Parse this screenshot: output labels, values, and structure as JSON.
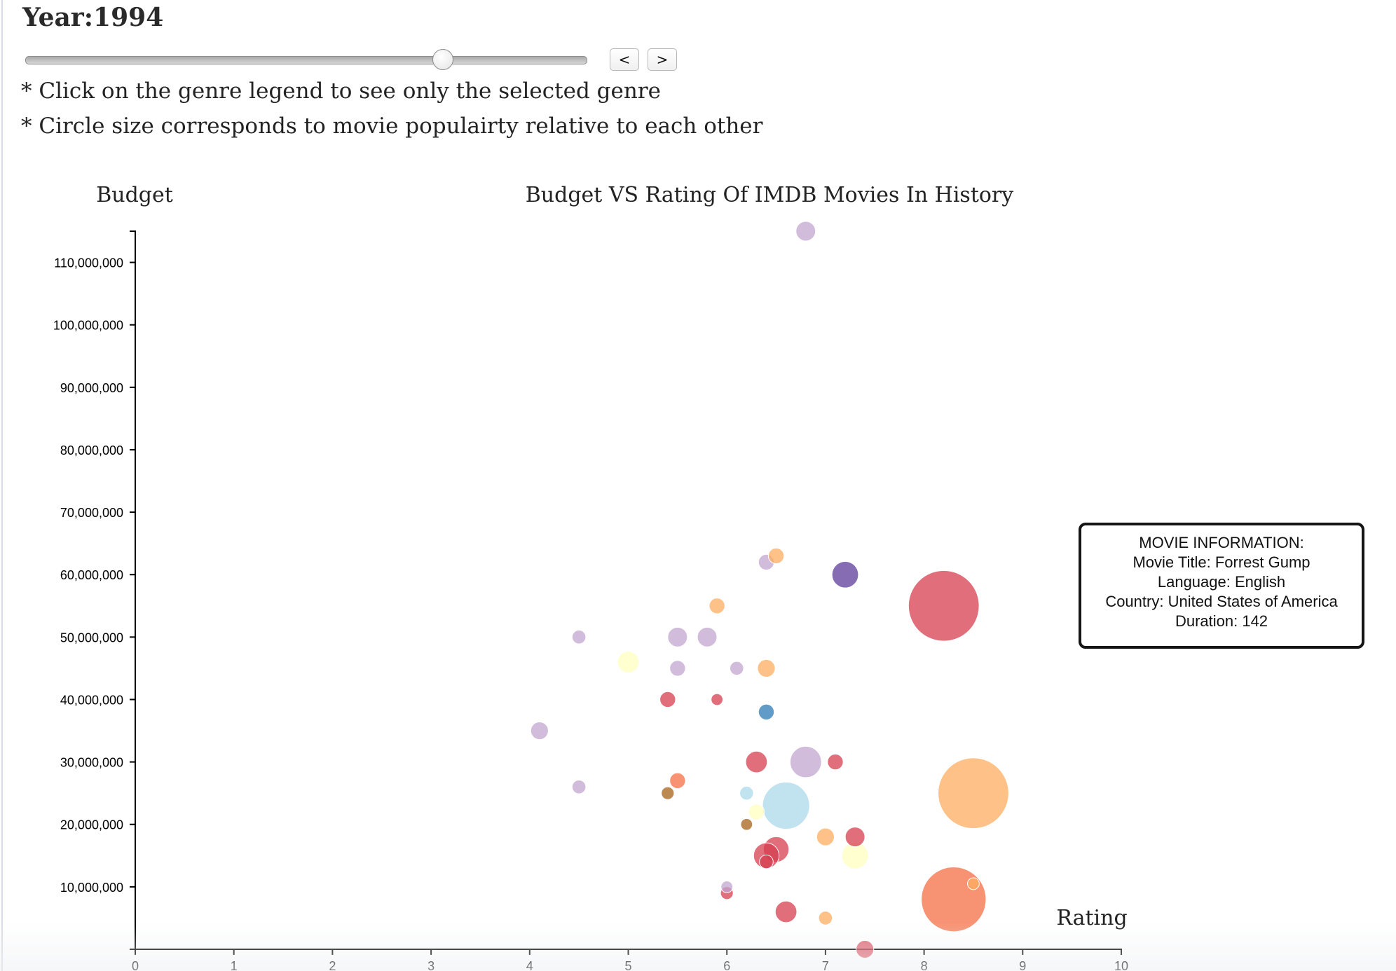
{
  "header": {
    "year_label": "Year:1994",
    "slider": {
      "value": 1994,
      "fraction": 0.745
    },
    "prev_label": "<",
    "next_label": ">"
  },
  "notes": [
    "* Click on the genre legend to see only the selected genre",
    "* Circle size corresponds to movie populairty relative to each other"
  ],
  "tooltip": {
    "heading": "MOVIE INFORMATION:",
    "title_line": "Movie Title: Forrest Gump",
    "language_line": "Language: English",
    "country_line": "Country: United States of America",
    "duration_line": "Duration: 142"
  },
  "chart_data": {
    "type": "scatter",
    "title": "Budget VS Rating Of IMDB Movies In History",
    "xlabel": "Rating",
    "ylabel": "Budget",
    "xlim": [
      0,
      10
    ],
    "ylim": [
      0,
      115000000
    ],
    "xticks": [
      "0",
      "1",
      "2",
      "3",
      "4",
      "5",
      "6",
      "7",
      "8",
      "9",
      "10"
    ],
    "yticks": [
      {
        "value": 10000000,
        "label": "10,000,000"
      },
      {
        "value": 20000000,
        "label": "20,000,000"
      },
      {
        "value": 30000000,
        "label": "30,000,000"
      },
      {
        "value": 40000000,
        "label": "40,000,000"
      },
      {
        "value": 50000000,
        "label": "50,000,000"
      },
      {
        "value": 60000000,
        "label": "60,000,000"
      },
      {
        "value": 70000000,
        "label": "70,000,000"
      },
      {
        "value": 80000000,
        "label": "80,000,000"
      },
      {
        "value": 90000000,
        "label": "90,000,000"
      },
      {
        "value": 100000000,
        "label": "100,000,000"
      },
      {
        "value": 110000000,
        "label": "110,000,000"
      }
    ],
    "grid": false,
    "colors": {
      "red": "#d53e4f",
      "orange": "#f46d43",
      "light_orange": "#fdae61",
      "yellow": "#ffffbf",
      "lavender": "#c2a5cf",
      "purple": "#5e3c99",
      "light_blue": "#abd9e9",
      "blue": "#2c7bb6",
      "brown": "#a6611a"
    },
    "points": [
      {
        "x": 6.8,
        "y": 115000000,
        "popularity": 2.0,
        "color": "lavender"
      },
      {
        "x": 6.4,
        "y": 62000000,
        "popularity": 1.6,
        "color": "lavender"
      },
      {
        "x": 6.5,
        "y": 63000000,
        "popularity": 1.6,
        "color": "light_orange"
      },
      {
        "x": 7.2,
        "y": 60000000,
        "popularity": 2.7,
        "color": "purple"
      },
      {
        "x": 8.2,
        "y": 55000000,
        "popularity": 7.2,
        "color": "red"
      },
      {
        "x": 5.9,
        "y": 55000000,
        "popularity": 1.6,
        "color": "light_orange"
      },
      {
        "x": 4.5,
        "y": 50000000,
        "popularity": 1.4,
        "color": "lavender"
      },
      {
        "x": 5.5,
        "y": 50000000,
        "popularity": 2.0,
        "color": "lavender"
      },
      {
        "x": 5.8,
        "y": 50000000,
        "popularity": 2.0,
        "color": "lavender"
      },
      {
        "x": 5.0,
        "y": 46000000,
        "popularity": 2.2,
        "color": "yellow"
      },
      {
        "x": 5.5,
        "y": 45000000,
        "popularity": 1.6,
        "color": "lavender"
      },
      {
        "x": 6.1,
        "y": 45000000,
        "popularity": 1.4,
        "color": "lavender"
      },
      {
        "x": 6.4,
        "y": 45000000,
        "popularity": 1.8,
        "color": "light_orange"
      },
      {
        "x": 5.4,
        "y": 40000000,
        "popularity": 1.6,
        "color": "red"
      },
      {
        "x": 5.9,
        "y": 40000000,
        "popularity": 1.2,
        "color": "red"
      },
      {
        "x": 6.4,
        "y": 38000000,
        "popularity": 1.6,
        "color": "blue"
      },
      {
        "x": 4.1,
        "y": 35000000,
        "popularity": 1.8,
        "color": "lavender"
      },
      {
        "x": 6.3,
        "y": 30000000,
        "popularity": 2.2,
        "color": "red"
      },
      {
        "x": 6.8,
        "y": 30000000,
        "popularity": 3.2,
        "color": "lavender"
      },
      {
        "x": 7.1,
        "y": 30000000,
        "popularity": 1.6,
        "color": "red"
      },
      {
        "x": 4.5,
        "y": 26000000,
        "popularity": 1.4,
        "color": "lavender"
      },
      {
        "x": 5.5,
        "y": 27000000,
        "popularity": 1.6,
        "color": "orange"
      },
      {
        "x": 5.4,
        "y": 25000000,
        "popularity": 1.3,
        "color": "brown"
      },
      {
        "x": 8.5,
        "y": 25000000,
        "popularity": 7.2,
        "color": "light_orange"
      },
      {
        "x": 6.2,
        "y": 25000000,
        "popularity": 1.4,
        "color": "light_blue"
      },
      {
        "x": 6.6,
        "y": 23000000,
        "popularity": 4.8,
        "color": "light_blue"
      },
      {
        "x": 6.3,
        "y": 22000000,
        "popularity": 1.6,
        "color": "yellow"
      },
      {
        "x": 6.2,
        "y": 20000000,
        "popularity": 1.2,
        "color": "brown"
      },
      {
        "x": 7.0,
        "y": 18000000,
        "popularity": 1.8,
        "color": "light_orange"
      },
      {
        "x": 7.3,
        "y": 18000000,
        "popularity": 2.0,
        "color": "red"
      },
      {
        "x": 6.5,
        "y": 16000000,
        "popularity": 2.6,
        "color": "red"
      },
      {
        "x": 6.4,
        "y": 15000000,
        "popularity": 2.6,
        "color": "red"
      },
      {
        "x": 7.3,
        "y": 15000000,
        "popularity": 2.7,
        "color": "yellow"
      },
      {
        "x": 6.4,
        "y": 14000000,
        "popularity": 1.4,
        "color": "red"
      },
      {
        "x": 8.3,
        "y": 8000000,
        "popularity": 6.6,
        "color": "orange"
      },
      {
        "x": 8.5,
        "y": 10500000,
        "popularity": 1.2,
        "color": "light_orange"
      },
      {
        "x": 6.0,
        "y": 10000000,
        "popularity": 1.2,
        "color": "lavender"
      },
      {
        "x": 6.0,
        "y": 9000000,
        "popularity": 1.3,
        "color": "red"
      },
      {
        "x": 6.6,
        "y": 6000000,
        "popularity": 2.2,
        "color": "red"
      },
      {
        "x": 7.0,
        "y": 5000000,
        "popularity": 1.4,
        "color": "light_orange"
      },
      {
        "x": 7.4,
        "y": 0,
        "popularity": 1.8,
        "color": "red"
      }
    ]
  }
}
